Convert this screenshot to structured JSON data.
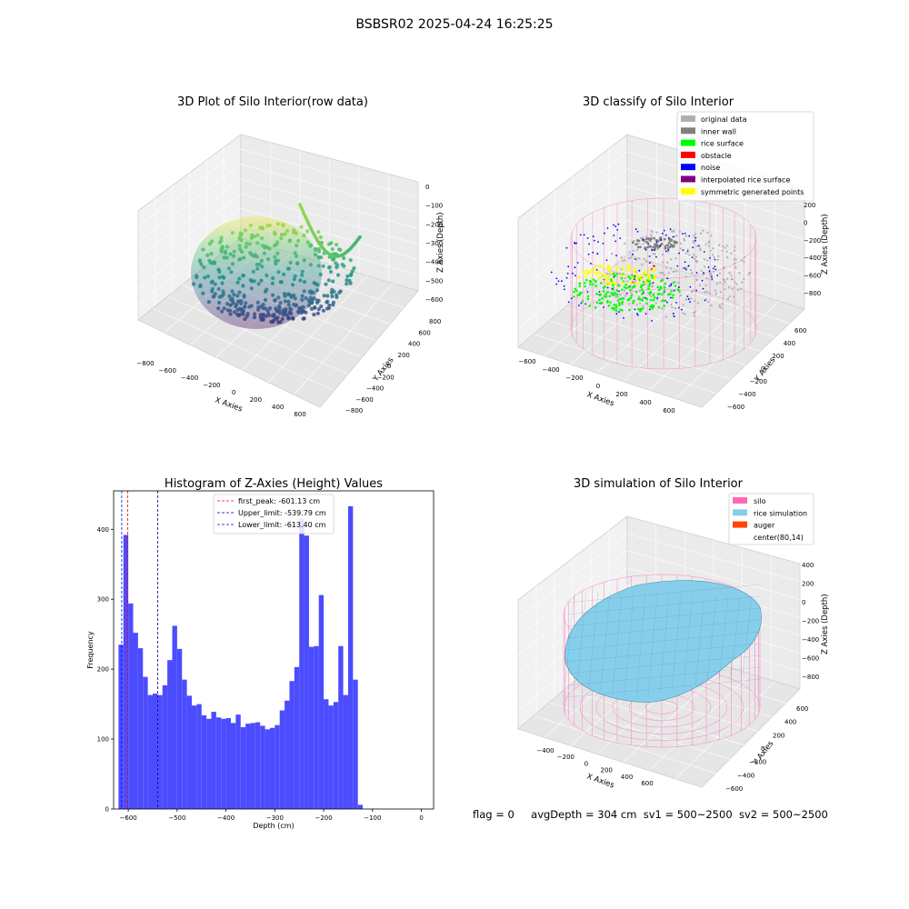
{
  "figure": {
    "suptitle": "BSBSR02 2025-04-24 16:25:25"
  },
  "footer": {
    "flag": "flag = 0",
    "avg_depth": "avgDepth = 304 cm",
    "sv1": "sv1 = 500~2500",
    "sv2": "sv2 = 500~2500"
  },
  "chart_data": [
    {
      "type": "scatter",
      "title": "3D Plot of Silo Interior(row data)",
      "xlabel": "X Axies",
      "ylabel": "Y Axies",
      "zlabel": "Z Axies (Depth)",
      "x_ticks": [
        "−800",
        "−600",
        "−400",
        "−200",
        "0",
        "200",
        "400",
        "600"
      ],
      "y_ticks": [
        "800",
        "600",
        "400",
        "200",
        "0",
        "−200",
        "−400",
        "−600",
        "−800"
      ],
      "z_ticks": [
        "0",
        "−100",
        "−200",
        "−300",
        "−400",
        "−500",
        "−600"
      ],
      "xlim": [
        -800,
        600
      ],
      "ylim": [
        -800,
        800
      ],
      "zlim": [
        -650,
        0
      ],
      "colormap": "viridis"
    },
    {
      "type": "scatter",
      "title": "3D classify of Silo Interior",
      "xlabel": "X Axies",
      "ylabel": "Y Axies",
      "zlabel": "Z Axies (Depth)",
      "x_ticks": [
        "−600",
        "−400",
        "−200",
        "0",
        "200",
        "400",
        "600"
      ],
      "y_ticks": [
        "600",
        "400",
        "200",
        "0",
        "−200",
        "−400",
        "−600"
      ],
      "z_ticks": [
        "200",
        "0",
        "−200",
        "−400",
        "−600",
        "−800"
      ],
      "legend_position": "top-right",
      "legend": [
        {
          "name": "original data",
          "color": "#b0b0b0"
        },
        {
          "name": "inner wall",
          "color": "#808080"
        },
        {
          "name": "rice surface",
          "color": "#00ff00"
        },
        {
          "name": "obstacle",
          "color": "#ff0000"
        },
        {
          "name": "noise",
          "color": "#0000ff"
        },
        {
          "name": "interpolated rice surface",
          "color": "#800080"
        },
        {
          "name": "symmetric generated points",
          "color": "#ffff00"
        }
      ]
    },
    {
      "type": "bar",
      "title": "Histogram of Z-Axies (Height) Values",
      "xlabel": "Depth (cm)",
      "ylabel": "Frequency",
      "bin_width": 10,
      "bin_start": -620,
      "values": [
        235,
        392,
        294,
        252,
        230,
        189,
        163,
        165,
        163,
        177,
        213,
        262,
        229,
        185,
        162,
        148,
        150,
        134,
        129,
        139,
        131,
        129,
        130,
        123,
        135,
        117,
        122,
        123,
        124,
        119,
        114,
        116,
        120,
        141,
        155,
        183,
        203,
        415,
        391,
        232,
        233,
        306,
        157,
        148,
        153,
        233,
        163,
        433,
        185,
        6
      ],
      "xlim": [
        -630,
        25
      ],
      "ylim": [
        0,
        455
      ],
      "x_ticks": [
        -600,
        -500,
        -400,
        -300,
        -200,
        -100,
        0
      ],
      "x_tick_labels": [
        "−600",
        "−500",
        "−400",
        "−300",
        "−200",
        "−100",
        "0"
      ],
      "y_ticks": [
        0,
        100,
        200,
        300,
        400
      ],
      "y_tick_labels": [
        "0",
        "100",
        "200",
        "300",
        "400"
      ],
      "bar_color": "#4c4cff",
      "vlines": [
        {
          "name": "first_peak: -601.13 cm",
          "x": -601.13,
          "color": "#ff0000"
        },
        {
          "name": "Upper_limit: -539.79 cm",
          "x": -539.79,
          "color": "#00008b"
        },
        {
          "name": "Lower_limit: -613.40 cm",
          "x": -613.4,
          "color": "#0000ff"
        }
      ],
      "legend_position": "top-center"
    },
    {
      "type": "scatter",
      "title": "3D simulation of Silo Interior",
      "xlabel": "X Axies",
      "ylabel": "Y Axies",
      "zlabel": "Z Axies (Depth)",
      "x_ticks": [
        "−400",
        "−200",
        "0",
        "200",
        "400",
        "600"
      ],
      "y_ticks": [
        "600",
        "400",
        "200",
        "0",
        "−200",
        "−400",
        "−600"
      ],
      "z_ticks": [
        "400",
        "200",
        "0",
        "−200",
        "−400",
        "−600",
        "−800"
      ],
      "legend_position": "top-right",
      "legend": [
        {
          "name": "silo",
          "color": "#ff69b4"
        },
        {
          "name": "rice simulation",
          "color": "#87ceeb"
        },
        {
          "name": "auger",
          "color": "#ff4500"
        },
        {
          "name": "center(80,14)",
          "color": "#ffffff"
        }
      ]
    }
  ]
}
